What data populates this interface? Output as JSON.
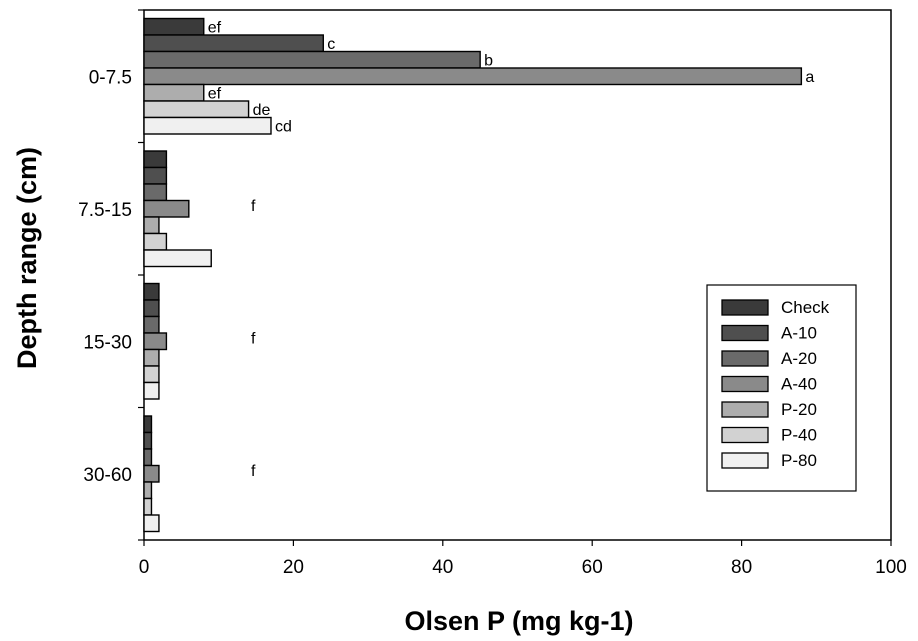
{
  "chart_data": {
    "type": "bar",
    "orientation": "horizontal",
    "xlabel": "Olsen P (mg kg-1)",
    "ylabel": "Depth range (cm)",
    "xlim": [
      0,
      100
    ],
    "xticks": [
      "0",
      "20",
      "40",
      "60",
      "80",
      "100"
    ],
    "categories": [
      "0-7.5",
      "7.5-15",
      "15-30",
      "30-60"
    ],
    "series": [
      {
        "name": "Check",
        "values": [
          8,
          3,
          2,
          1
        ],
        "color": "#3a3a3a"
      },
      {
        "name": "A-10",
        "values": [
          24,
          3,
          2,
          1
        ],
        "color": "#4f4f4f"
      },
      {
        "name": "A-20",
        "values": [
          45,
          3,
          2,
          1
        ],
        "color": "#6a6a6a"
      },
      {
        "name": "A-40",
        "values": [
          88,
          6,
          3,
          2
        ],
        "color": "#8a8a8a"
      },
      {
        "name": "P-20",
        "values": [
          8,
          2,
          2,
          1
        ],
        "color": "#adadad"
      },
      {
        "name": "P-40",
        "values": [
          14,
          3,
          2,
          1
        ],
        "color": "#d2d2d2"
      },
      {
        "name": "P-80",
        "values": [
          17,
          9,
          2,
          2
        ],
        "color": "#f0f0f0"
      }
    ],
    "bar_labels": [
      [
        "ef",
        "c",
        "b",
        "a",
        "ef",
        "de",
        "cd"
      ],
      [
        "f"
      ],
      [
        "f"
      ],
      [
        "f"
      ]
    ],
    "grid": false,
    "legend_position": "right"
  }
}
